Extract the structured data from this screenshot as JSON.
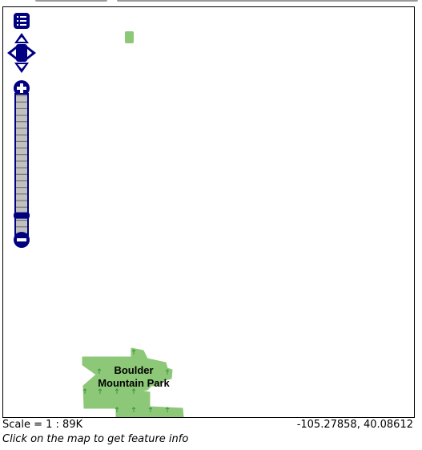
{
  "map": {
    "park_label_line1": "Boulder",
    "park_label_line2": "Mountain Park",
    "park_fill_color": "#8dc878",
    "park_tree_color": "#3a9a3a",
    "control_color": "#000080",
    "zoom_track_color": "#c0c0c0",
    "icons": [
      "layer-switcher-icon",
      "pan-up-icon",
      "pan-left-icon",
      "pan-right-icon",
      "pan-down-icon",
      "zoom-in-icon",
      "zoom-out-icon"
    ],
    "zoom_level": 0.87
  },
  "status": {
    "scale": "Scale = 1 : 89K",
    "coordinates": "-105.27858, 40.08612"
  },
  "hint": "Click on the map to get feature info"
}
